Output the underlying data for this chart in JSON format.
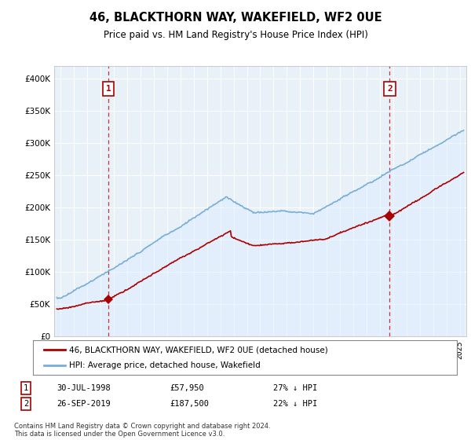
{
  "title": "46, BLACKTHORN WAY, WAKEFIELD, WF2 0UE",
  "subtitle": "Price paid vs. HM Land Registry's House Price Index (HPI)",
  "legend_line1": "46, BLACKTHORN WAY, WAKEFIELD, WF2 0UE (detached house)",
  "legend_line2": "HPI: Average price, detached house, Wakefield",
  "footnote": "Contains HM Land Registry data © Crown copyright and database right 2024.\nThis data is licensed under the Open Government Licence v3.0.",
  "table_row1_num": "1",
  "table_row1_date": "30-JUL-1998",
  "table_row1_price": "£57,950",
  "table_row1_hpi": "27% ↓ HPI",
  "table_row2_num": "2",
  "table_row2_date": "26-SEP-2019",
  "table_row2_price": "£187,500",
  "table_row2_hpi": "22% ↓ HPI",
  "sale1_year": 1998.58,
  "sale1_price": 57950,
  "sale2_year": 2019.73,
  "sale2_price": 187500,
  "red_color": "#aa0000",
  "blue_color": "#7aaed6",
  "blue_fill": "#ddeeff",
  "dashed_color": "#cc0000",
  "background_color": "#ffffff",
  "plot_bg_color": "#e8f0f8",
  "grid_color": "#ffffff",
  "ylim": [
    0,
    420000
  ],
  "xlim_start": 1994.5,
  "xlim_end": 2025.5
}
